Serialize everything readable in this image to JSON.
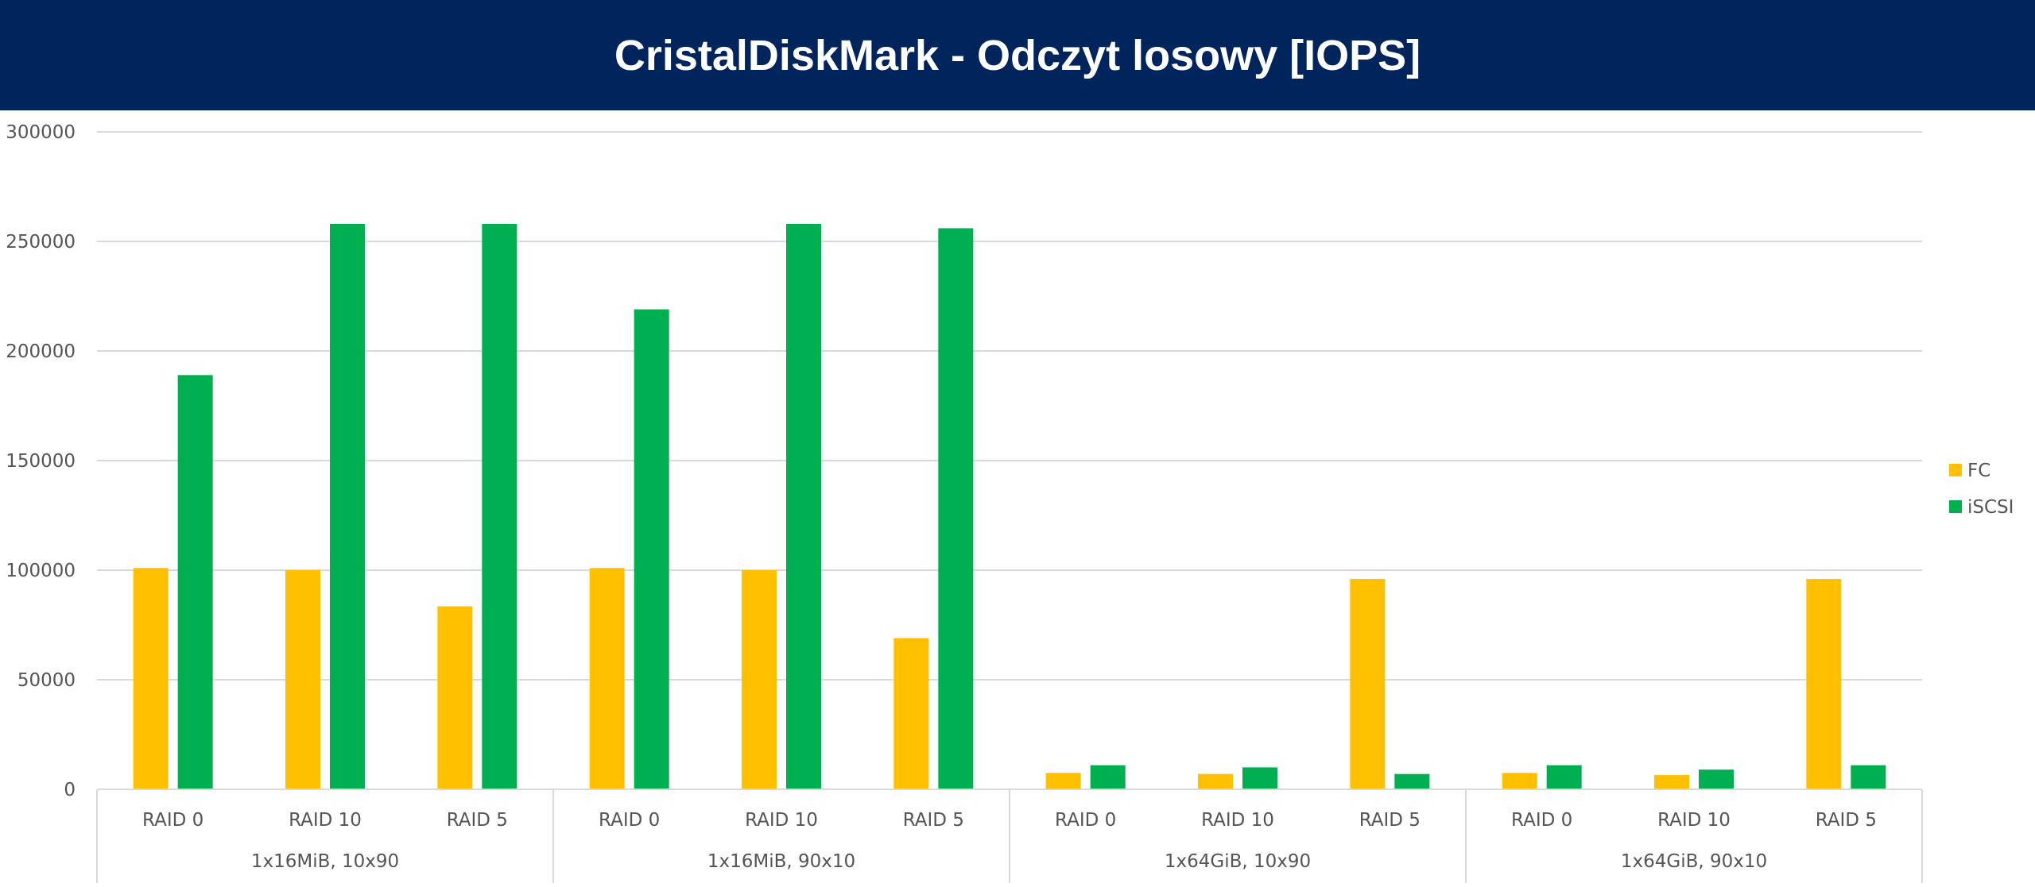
{
  "title": "CristalDiskMark - Odczyt losowy [IOPS]",
  "chart_data": {
    "type": "bar",
    "title": "CristalDiskMark - Odczyt losowy [IOPS]",
    "xlabel": "",
    "ylabel": "",
    "ylim": [
      0,
      300000
    ],
    "yticks": [
      "0",
      "50000",
      "100000",
      "150000",
      "200000",
      "250000",
      "300000"
    ],
    "grid": true,
    "legend_position": "right",
    "groups": [
      "1x16MiB, 10x90",
      "1x16MiB, 90x10",
      "1x64GiB, 10x90",
      "1x64GiB, 90x10"
    ],
    "categories": [
      "RAID 0",
      "RAID 10",
      "RAID 5",
      "RAID 0",
      "RAID 10",
      "RAID 5",
      "RAID 0",
      "RAID 10",
      "RAID 5",
      "RAID 0",
      "RAID 10",
      "RAID 5"
    ],
    "series": [
      {
        "name": "FC",
        "color": "#ffc000",
        "values": [
          101000,
          100000,
          83500,
          101000,
          100000,
          69000,
          7500,
          7000,
          96000,
          7500,
          6500,
          96000
        ]
      },
      {
        "name": "iSCSI",
        "color": "#00b050",
        "values": [
          189000,
          258000,
          258000,
          219000,
          258000,
          256000,
          11000,
          10000,
          7000,
          11000,
          9000,
          11000
        ]
      }
    ]
  }
}
